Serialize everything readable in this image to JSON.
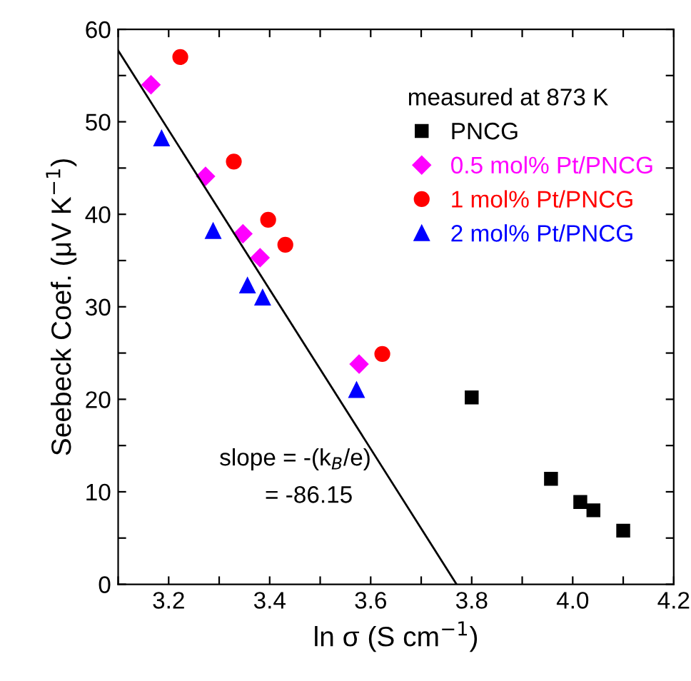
{
  "chart_data": {
    "type": "scatter",
    "xlabel": "ln σ (S cm$^{−1}$)",
    "ylabel": "Seebeck Coef. (μV K$^{−1}$)",
    "legend_title": "measured at 873 K",
    "legend": "top right",
    "grid": false,
    "xlim": [
      3.1,
      4.2
    ],
    "xticks": [
      {
        "value": 3.1,
        "label": null
      },
      3.2,
      {
        "value": 3.3,
        "label": null
      },
      3.4,
      {
        "value": 3.5,
        "label": null
      },
      3.6,
      {
        "value": 3.7,
        "label": null
      },
      3.8,
      {
        "value": 3.9,
        "label": null
      },
      {
        "value": 4.0,
        "label": "4.0"
      },
      {
        "value": 4.1,
        "label": null
      },
      4.2
    ],
    "ylim": [
      0,
      60
    ],
    "yticks": [
      0,
      {
        "value": 5,
        "label": null
      },
      10,
      {
        "value": 15,
        "label": null
      },
      20,
      {
        "value": 25,
        "label": null
      },
      30,
      {
        "value": 35,
        "label": null
      },
      40,
      {
        "value": 45,
        "label": null
      },
      50,
      {
        "value": 55,
        "label": null
      },
      60
    ],
    "series": [
      {
        "name": "PNCG",
        "color": "#000000",
        "marker": "square",
        "x": [
          3.8,
          3.957,
          4.015,
          4.041,
          4.1
        ],
        "values": [
          20.2,
          11.4,
          8.9,
          8.0,
          5.8
        ]
      },
      {
        "name": "0.5 mol% Pt/PNCG",
        "color": "#ff00ff",
        "marker": "diamond",
        "x": [
          3.165,
          3.273,
          3.347,
          3.381,
          3.577
        ],
        "values": [
          54.0,
          44.1,
          37.9,
          35.3,
          23.8
        ]
      },
      {
        "name": "1 mol% Pt/PNCG",
        "color": "#ff0000",
        "marker": "circle",
        "x": [
          3.223,
          3.329,
          3.397,
          3.431,
          3.623
        ],
        "values": [
          57.0,
          45.7,
          39.4,
          36.7,
          24.9
        ]
      },
      {
        "name": "2 mol% Pt/PNCG",
        "color": "#0000ff",
        "marker": "triangle",
        "x": [
          3.186,
          3.288,
          3.356,
          3.386,
          3.572
        ],
        "values": [
          48.2,
          38.2,
          32.3,
          31.0,
          21.0
        ]
      },
      {
        "type": "line",
        "color": "#000000",
        "line_style": "solid",
        "x": [
          3.1,
          3.77
        ],
        "values": [
          57.7,
          0
        ]
      }
    ],
    "annotations": [
      "slope = -(k$_{B}$/e)",
      "= -86.15"
    ]
  }
}
